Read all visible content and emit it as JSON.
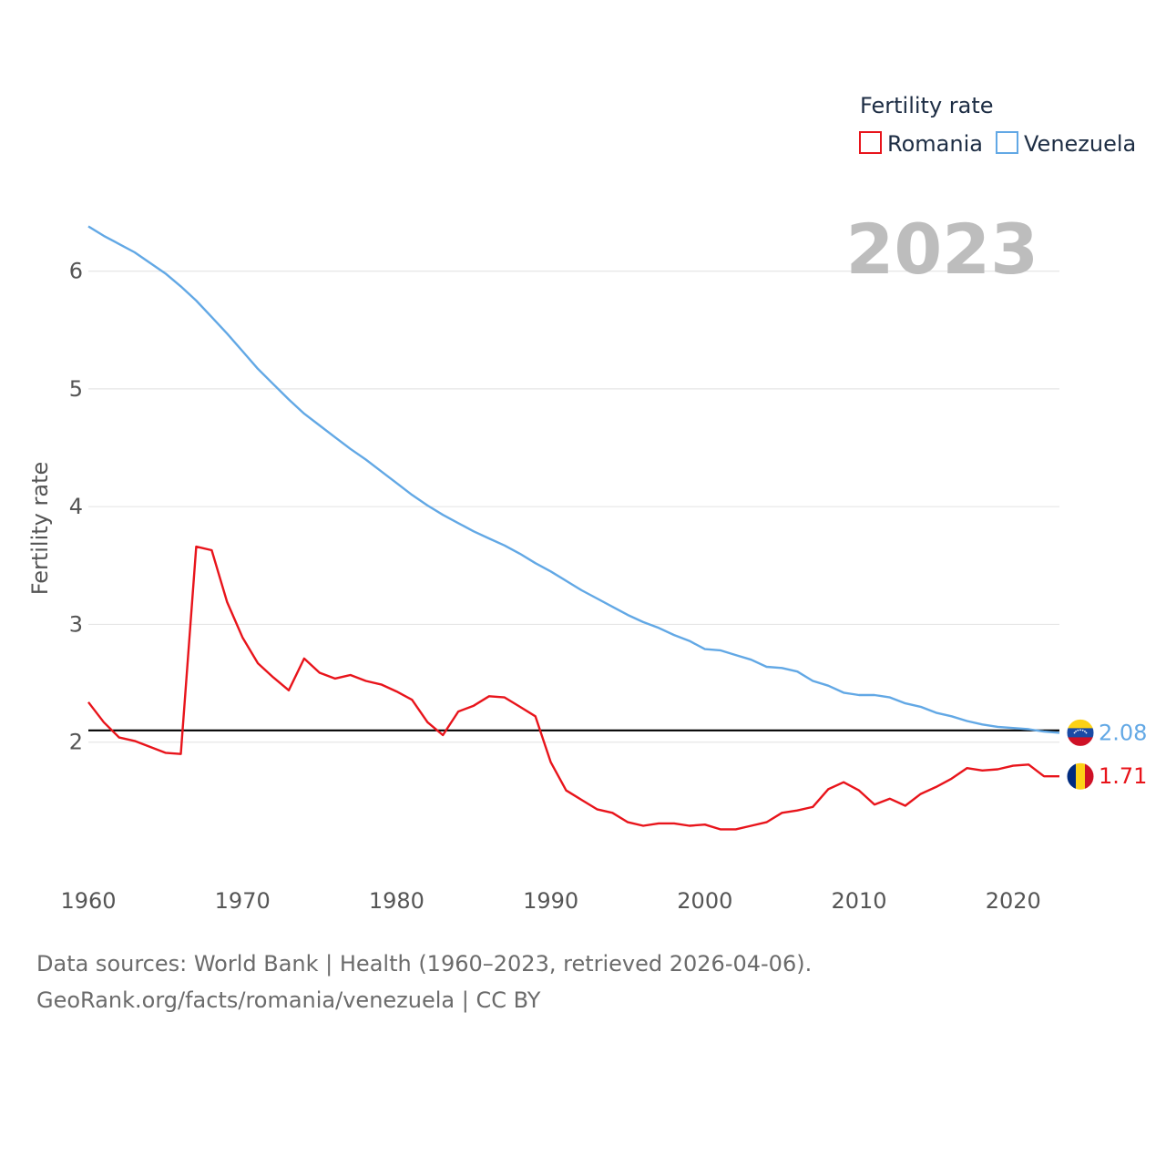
{
  "legend": {
    "title": "Fertility rate",
    "items": [
      {
        "label": "Romania",
        "color": "#e8141b"
      },
      {
        "label": "Venezuela",
        "color": "#62a8e5"
      }
    ]
  },
  "year_watermark": "2023",
  "reference_line": {
    "value": 2.1,
    "color": "#000000"
  },
  "sources": {
    "line1": "Data sources: World Bank | Health (1960–2023, retrieved 2026-04-06).",
    "line2": "GeoRank.org/facts/romania/venezuela | CC BY"
  },
  "chart_data": {
    "type": "line",
    "title": "",
    "xlabel": "",
    "ylabel": "Fertility rate",
    "xlim": [
      1960,
      2023
    ],
    "ylim": [
      1.0,
      6.5
    ],
    "xticks": [
      1960,
      1970,
      1980,
      1990,
      2000,
      2010,
      2020
    ],
    "yticks": [
      2,
      3,
      4,
      5,
      6
    ],
    "grid": true,
    "legend_position": "top-right",
    "x": [
      1960,
      1961,
      1962,
      1963,
      1964,
      1965,
      1966,
      1967,
      1968,
      1969,
      1970,
      1971,
      1972,
      1973,
      1974,
      1975,
      1976,
      1977,
      1978,
      1979,
      1980,
      1981,
      1982,
      1983,
      1984,
      1985,
      1986,
      1987,
      1988,
      1989,
      1990,
      1991,
      1992,
      1993,
      1994,
      1995,
      1996,
      1997,
      1998,
      1999,
      2000,
      2001,
      2002,
      2003,
      2004,
      2005,
      2006,
      2007,
      2008,
      2009,
      2010,
      2011,
      2012,
      2013,
      2014,
      2015,
      2016,
      2017,
      2018,
      2019,
      2020,
      2021,
      2022,
      2023
    ],
    "series": [
      {
        "name": "Romania",
        "color": "#e8141b",
        "end_label": "1.71",
        "values": [
          2.34,
          2.17,
          2.04,
          2.01,
          1.96,
          1.91,
          1.9,
          3.66,
          3.63,
          3.19,
          2.89,
          2.67,
          2.55,
          2.44,
          2.71,
          2.59,
          2.54,
          2.57,
          2.52,
          2.49,
          2.43,
          2.36,
          2.17,
          2.06,
          2.26,
          2.31,
          2.39,
          2.38,
          2.3,
          2.22,
          1.83,
          1.59,
          1.51,
          1.43,
          1.4,
          1.32,
          1.29,
          1.31,
          1.31,
          1.29,
          1.3,
          1.26,
          1.26,
          1.29,
          1.32,
          1.4,
          1.42,
          1.45,
          1.6,
          1.66,
          1.59,
          1.47,
          1.52,
          1.46,
          1.56,
          1.62,
          1.69,
          1.78,
          1.76,
          1.77,
          1.8,
          1.81,
          1.71,
          1.71
        ]
      },
      {
        "name": "Venezuela",
        "color": "#62a8e5",
        "end_label": "2.08",
        "values": [
          6.38,
          6.3,
          6.23,
          6.16,
          6.07,
          5.98,
          5.87,
          5.75,
          5.61,
          5.47,
          5.32,
          5.17,
          5.04,
          4.91,
          4.79,
          4.69,
          4.59,
          4.49,
          4.4,
          4.3,
          4.2,
          4.1,
          4.01,
          3.93,
          3.86,
          3.79,
          3.73,
          3.67,
          3.6,
          3.52,
          3.45,
          3.37,
          3.29,
          3.22,
          3.15,
          3.08,
          3.02,
          2.97,
          2.91,
          2.86,
          2.79,
          2.78,
          2.74,
          2.7,
          2.64,
          2.63,
          2.6,
          2.52,
          2.48,
          2.42,
          2.4,
          2.4,
          2.38,
          2.33,
          2.3,
          2.25,
          2.22,
          2.18,
          2.15,
          2.13,
          2.12,
          2.11,
          2.09,
          2.08
        ]
      }
    ]
  }
}
